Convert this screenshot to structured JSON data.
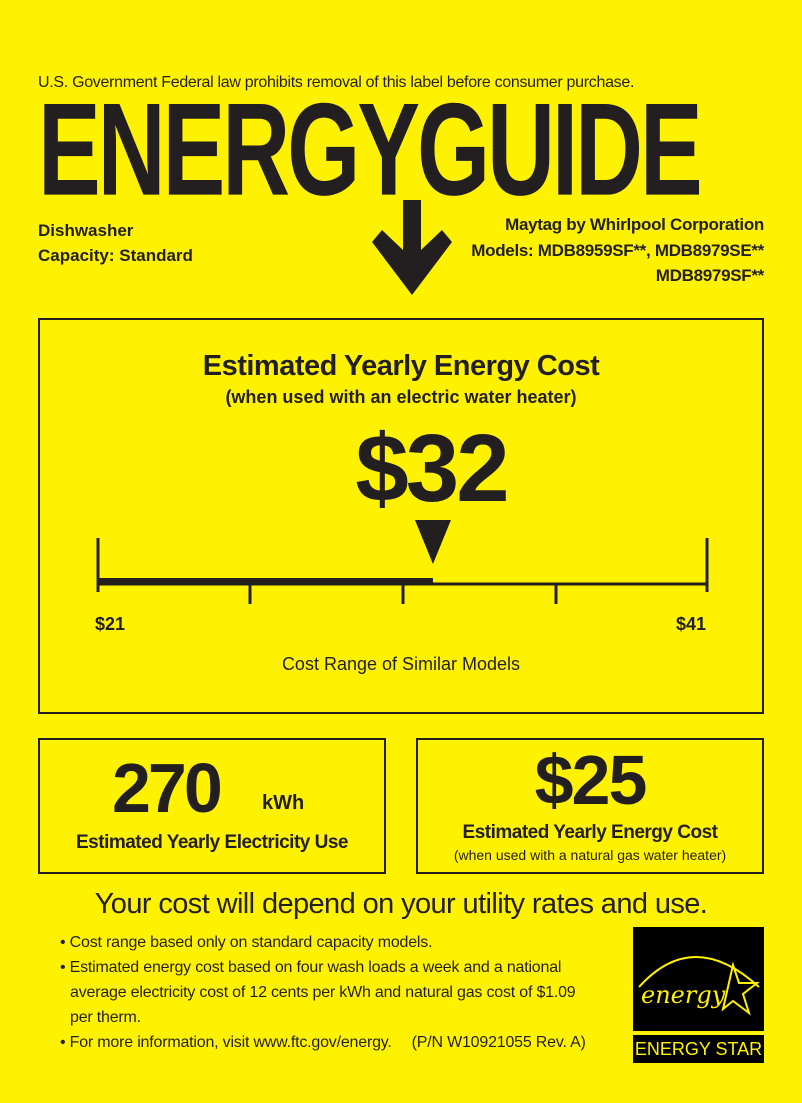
{
  "header": {
    "notice": "U.S. Government  Federal law prohibits removal of this label before consumer purchase.",
    "title": "ENERGYGUIDE",
    "appliance": "Dishwasher",
    "capacity": "Capacity: Standard",
    "manufacturer": "Maytag by Whirlpool Corporation",
    "models_line1": "Models: MDB8959SF**, MDB8979SE**",
    "models_line2": "MDB8979SF**"
  },
  "main": {
    "heading": "Estimated Yearly Energy Cost",
    "subheading": "(when used with an electric water heater)",
    "cost": "$32",
    "range_min": "$21",
    "range_max": "$41",
    "range_caption": "Cost Range of Similar Models",
    "cost_value": 32,
    "range_low": 21,
    "range_high": 41
  },
  "electricity": {
    "value": "270",
    "unit": "kWh",
    "label": "Estimated Yearly Electricity Use"
  },
  "gas": {
    "value": "$25",
    "label": "Estimated Yearly Energy Cost",
    "sublabel": "(when used with a natural gas water heater)"
  },
  "footer": {
    "headline": "Your cost will depend on your utility rates and use.",
    "bullets": [
      "Cost range based only on standard capacity models.",
      "Estimated energy cost based on four wash loads a week and a national",
      "average electricity cost of 12 cents per kWh and natural gas cost of $1.09",
      "per therm.",
      "For more information, visit www.ftc.gov/energy."
    ],
    "part_number": "(P/N W10921055 Rev. A)",
    "energy_star_script": "energy",
    "energy_star_label": "ENERGY STAR"
  }
}
